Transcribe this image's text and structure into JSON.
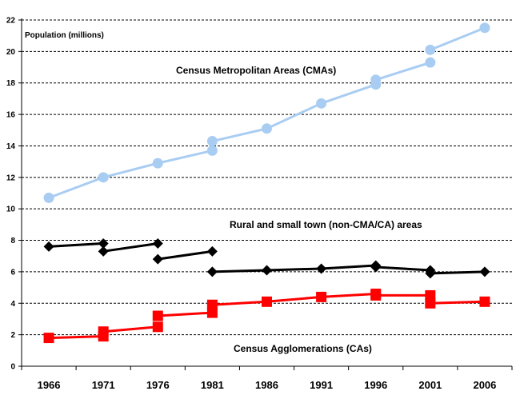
{
  "chart_data": {
    "type": "line",
    "ylabel": "Population (millions)",
    "ylim": [
      0,
      22
    ],
    "yticks": [
      0,
      2,
      4,
      6,
      8,
      10,
      12,
      14,
      16,
      18,
      20,
      22
    ],
    "categories": [
      "1966",
      "1971",
      "1976",
      "1981",
      "1986",
      "1991",
      "1996",
      "2001",
      "2006"
    ],
    "grid": "horizontal dashed",
    "annotations": [
      "Census Metropolitan Areas (CMAs)",
      "Rural and small town (non-CMA/CA) areas",
      "Census Agglomerations (CAs)"
    ],
    "series": [
      {
        "name": "Census Metropolitan Areas (CMAs)",
        "color": "#a9cdf2",
        "marker": "circle",
        "segments": [
          [
            [
              "1966",
              10.7
            ],
            [
              "1971",
              12.0
            ],
            [
              "1976",
              12.9
            ],
            [
              "1981",
              13.7
            ]
          ],
          [
            [
              "1981",
              14.3
            ],
            [
              "1986",
              15.1
            ],
            [
              "1991",
              16.7
            ],
            [
              "1996",
              17.9
            ]
          ],
          [
            [
              "1996",
              18.2
            ],
            [
              "2001",
              19.3
            ]
          ],
          [
            [
              "2001",
              20.1
            ],
            [
              "2006",
              21.5
            ]
          ]
        ]
      },
      {
        "name": "Rural and small town (non-CMA/CA) areas",
        "color": "#000000",
        "marker": "diamond",
        "segments": [
          [
            [
              "1966",
              7.6
            ],
            [
              "1971",
              7.8
            ]
          ],
          [
            [
              "1971",
              7.3
            ],
            [
              "1976",
              7.8
            ]
          ],
          [
            [
              "1976",
              6.8
            ],
            [
              "1981",
              7.3
            ]
          ],
          [
            [
              "1981",
              6.0
            ],
            [
              "1986",
              6.1
            ],
            [
              "1991",
              6.2
            ],
            [
              "1996",
              6.4
            ]
          ],
          [
            [
              "1996",
              6.3
            ],
            [
              "2001",
              6.1
            ]
          ],
          [
            [
              "2001",
              5.9
            ],
            [
              "2006",
              6.0
            ]
          ]
        ]
      },
      {
        "name": "Census Agglomerations (CAs)",
        "color": "#ff0000",
        "marker": "square",
        "segments": [
          [
            [
              "1966",
              1.8
            ],
            [
              "1971",
              1.9
            ]
          ],
          [
            [
              "1971",
              2.2
            ],
            [
              "1976",
              2.5
            ]
          ],
          [
            [
              "1976",
              3.2
            ],
            [
              "1981",
              3.4
            ]
          ],
          [
            [
              "1981",
              3.9
            ],
            [
              "1986",
              4.1
            ],
            [
              "1991",
              4.4
            ],
            [
              "1996",
              4.6
            ]
          ],
          [
            [
              "1996",
              4.5
            ],
            [
              "2001",
              4.5
            ]
          ],
          [
            [
              "2001",
              4.0
            ],
            [
              "2006",
              4.1
            ]
          ]
        ]
      }
    ]
  }
}
